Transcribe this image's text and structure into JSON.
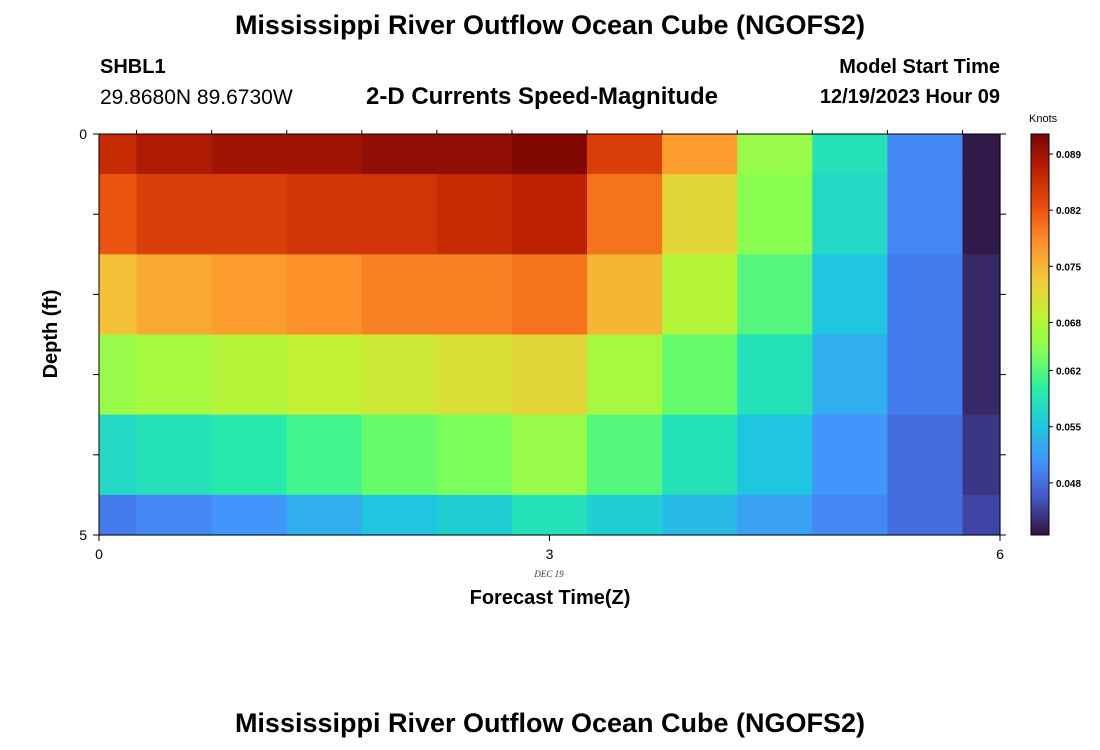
{
  "header": {
    "title": "Mississippi River Outflow Ocean Cube (NGOFS2)",
    "station_id": "SHBL1",
    "coordinates": "29.8680N  89.6730W",
    "subtitle": "2-D Currents Speed-Magnitude",
    "model_start_label": "Model Start Time",
    "model_start_value": "12/19/2023 Hour 09"
  },
  "footer": {
    "title": "Mississippi River Outflow Ocean Cube (NGOFS2)"
  },
  "chart_data": {
    "type": "heatmap",
    "xlabel": "Forecast Time(Z)",
    "ylabel": "Depth (ft)",
    "date_label": "DEC 19",
    "xlim": [
      0,
      6
    ],
    "ylim": [
      0,
      5
    ],
    "x_ticks": [
      "0",
      "3",
      "6"
    ],
    "y_ticks": [
      "0",
      "5"
    ],
    "x_edges": [
      0,
      0.25,
      0.75,
      1.25,
      1.75,
      2.25,
      2.75,
      3.25,
      3.75,
      4.25,
      4.75,
      5.25,
      5.75,
      6
    ],
    "y_edges": [
      0,
      0.5,
      1.5,
      2.5,
      3.5,
      4.5,
      5
    ],
    "z": [
      [
        0.086,
        0.088,
        0.089,
        0.089,
        0.09,
        0.09,
        0.091,
        0.084,
        0.077,
        0.066,
        0.058,
        0.05,
        0.042
      ],
      [
        0.082,
        0.084,
        0.084,
        0.085,
        0.085,
        0.086,
        0.087,
        0.08,
        0.072,
        0.065,
        0.057,
        0.05,
        0.042
      ],
      [
        0.074,
        0.076,
        0.077,
        0.078,
        0.079,
        0.079,
        0.08,
        0.075,
        0.068,
        0.062,
        0.055,
        0.049,
        0.043
      ],
      [
        0.066,
        0.067,
        0.068,
        0.069,
        0.07,
        0.071,
        0.072,
        0.067,
        0.063,
        0.058,
        0.053,
        0.049,
        0.043
      ],
      [
        0.057,
        0.058,
        0.059,
        0.061,
        0.063,
        0.064,
        0.066,
        0.062,
        0.058,
        0.055,
        0.051,
        0.048,
        0.044
      ],
      [
        0.049,
        0.05,
        0.051,
        0.053,
        0.055,
        0.056,
        0.058,
        0.056,
        0.054,
        0.052,
        0.05,
        0.048,
        0.045
      ]
    ],
    "colorbar": {
      "label": "Knots",
      "range": [
        0.0415,
        0.0915
      ],
      "ticks": [
        "0.089",
        "0.082",
        "0.075",
        "0.068",
        "0.062",
        "0.055",
        "0.048"
      ],
      "tick_values": [
        0.089,
        0.082,
        0.075,
        0.068,
        0.062,
        0.055,
        0.048
      ],
      "colormap": [
        "#30123b",
        "#4454c4",
        "#4490fe",
        "#1fc8de",
        "#29efa2",
        "#7dff56",
        "#c1f334",
        "#f1ca3a",
        "#fe922a",
        "#ea4f0d",
        "#be2102",
        "#7a0403"
      ]
    }
  }
}
